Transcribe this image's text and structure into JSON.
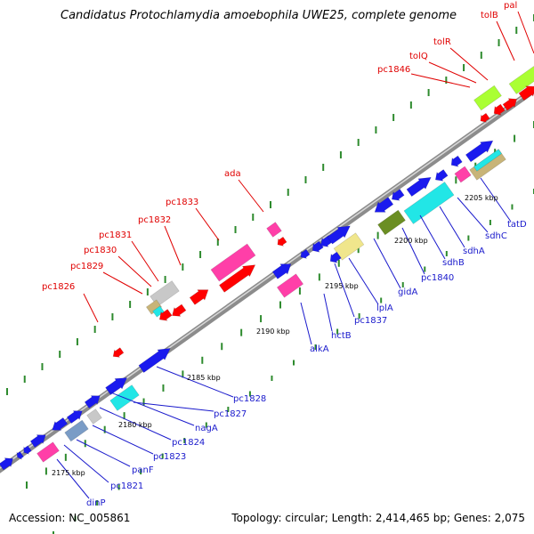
{
  "title": "Candidatus Protochlamydia amoebophila UWE25, complete genome",
  "footer": {
    "accession": "Accession: NC_005861",
    "topology": "Topology: circular; Length: 2,414,465 bp; Genes: 2,075"
  },
  "colors": {
    "background": "#ffffff",
    "backbone": "#8c8c8c",
    "tick": "#2e8b2e",
    "label_top": "#e00000",
    "label_bottom": "#1a1acc",
    "gene_blue": "#1a1aee",
    "gene_red": "#ff0000",
    "gene_pink": "#ff3fa8",
    "gene_cyan": "#22e6e6",
    "gene_lime": "#aaff33",
    "gene_olive": "#6b8e23",
    "gene_khaki": "#f0e68c",
    "gene_grey": "#c8c8c8",
    "gene_tan": "#c8b478",
    "gene_steel": "#7a9cc6"
  },
  "scale_labels": [
    "2175 kbp",
    "2180 kbp",
    "2185 kbp",
    "2190 kbp",
    "2195 kbp",
    "2200 kbp",
    "2205 kbp"
  ],
  "top_labels": [
    "pc1826",
    "pc1829",
    "pc1830",
    "pc1831",
    "pc1832",
    "pc1833",
    "ada",
    "pc1846",
    "tolQ",
    "tolR",
    "tolB",
    "pal"
  ],
  "bottom_labels": [
    "dinP",
    "pc1821",
    "panF",
    "pc1823",
    "pc1824",
    "nagA",
    "pc1827",
    "pc1828",
    "alkA",
    "hctB",
    "pc1837",
    "lplA",
    "gidA",
    "pc1840",
    "sdhB",
    "sdhA",
    "sdhC",
    "tatD"
  ]
}
